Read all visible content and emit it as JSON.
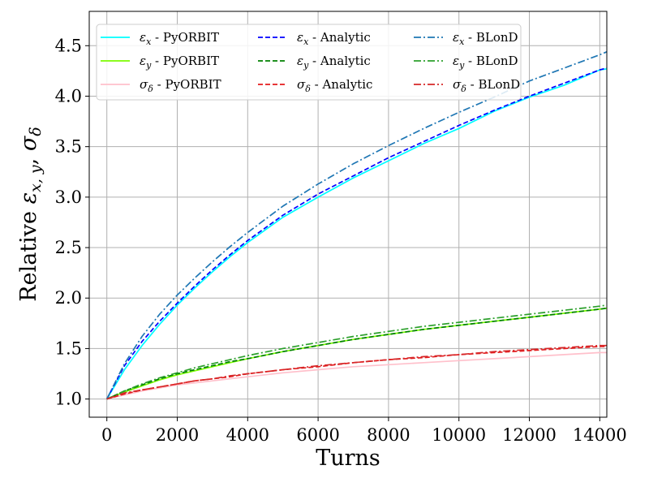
{
  "chart_data": {
    "type": "line",
    "title": "",
    "xlabel": "Turns",
    "ylabel_parts": [
      "Relative ",
      "ε",
      "x, y",
      ", ",
      "σ",
      "δ"
    ],
    "xlim": [
      -500,
      14200
    ],
    "ylim": [
      0.82,
      4.84
    ],
    "xticks": [
      0,
      2000,
      4000,
      6000,
      8000,
      10000,
      12000,
      14000
    ],
    "yticks": [
      1.0,
      1.5,
      2.0,
      2.5,
      3.0,
      3.5,
      4.0,
      4.5
    ],
    "xtick_labels": [
      "0",
      "2000",
      "4000",
      "6000",
      "8000",
      "10000",
      "12000",
      "14000"
    ],
    "ytick_labels": [
      "1.0",
      "1.5",
      "2.0",
      "2.5",
      "3.0",
      "3.5",
      "4.0",
      "4.5"
    ],
    "grid": true,
    "legend_placement": "top-left",
    "x": [
      0,
      500,
      1000,
      1500,
      2000,
      2500,
      3000,
      3500,
      4000,
      5000,
      6000,
      7000,
      8000,
      9000,
      10000,
      11000,
      12000,
      13000,
      14000,
      14200
    ],
    "series": [
      {
        "sym": "ε",
        "sub": "x",
        "method": "PyORBIT",
        "color": "#00ffff",
        "dash": "solid",
        "values": [
          1.0,
          1.29,
          1.53,
          1.74,
          1.93,
          2.1,
          2.26,
          2.41,
          2.55,
          2.8,
          3.0,
          3.19,
          3.36,
          3.53,
          3.68,
          3.85,
          3.99,
          4.11,
          4.26,
          4.27
        ]
      },
      {
        "sym": "ε",
        "sub": "y",
        "method": "PyORBIT",
        "color": "#7cfc00",
        "dash": "solid",
        "values": [
          1.0,
          1.07,
          1.13,
          1.19,
          1.24,
          1.28,
          1.32,
          1.36,
          1.4,
          1.47,
          1.53,
          1.59,
          1.64,
          1.69,
          1.73,
          1.77,
          1.81,
          1.85,
          1.89,
          1.9
        ]
      },
      {
        "sym": "σ",
        "sub": "δ",
        "method": "PyORBIT",
        "color": "#ffc0cb",
        "dash": "solid",
        "values": [
          1.0,
          1.04,
          1.08,
          1.11,
          1.14,
          1.16,
          1.18,
          1.2,
          1.22,
          1.26,
          1.29,
          1.32,
          1.34,
          1.36,
          1.38,
          1.4,
          1.42,
          1.44,
          1.46,
          1.46
        ]
      },
      {
        "sym": "ε",
        "sub": "x",
        "method": "Analytic",
        "color": "#0000ff",
        "dash": "dashed",
        "values": [
          1.0,
          1.33,
          1.57,
          1.77,
          1.95,
          2.12,
          2.28,
          2.43,
          2.57,
          2.82,
          3.03,
          3.21,
          3.39,
          3.55,
          3.71,
          3.86,
          4.0,
          4.13,
          4.26,
          4.28
        ]
      },
      {
        "sym": "ε",
        "sub": "y",
        "method": "Analytic",
        "color": "#008000",
        "dash": "dashed",
        "values": [
          1.0,
          1.08,
          1.14,
          1.2,
          1.25,
          1.29,
          1.33,
          1.37,
          1.4,
          1.47,
          1.53,
          1.59,
          1.64,
          1.69,
          1.73,
          1.77,
          1.81,
          1.85,
          1.89,
          1.9
        ]
      },
      {
        "sym": "σ",
        "sub": "δ",
        "method": "Analytic",
        "color": "#e41a1c",
        "dash": "dashed",
        "values": [
          1.0,
          1.05,
          1.09,
          1.12,
          1.15,
          1.18,
          1.2,
          1.22,
          1.25,
          1.29,
          1.32,
          1.36,
          1.39,
          1.41,
          1.44,
          1.46,
          1.48,
          1.5,
          1.52,
          1.52
        ]
      },
      {
        "sym": "ε",
        "sub": "x",
        "method": "BLonD",
        "color": "#1f77b4",
        "dash": "dashdot",
        "values": [
          1.0,
          1.35,
          1.62,
          1.84,
          2.03,
          2.2,
          2.36,
          2.51,
          2.65,
          2.91,
          3.13,
          3.33,
          3.51,
          3.68,
          3.84,
          3.99,
          4.15,
          4.28,
          4.41,
          4.44
        ]
      },
      {
        "sym": "ε",
        "sub": "y",
        "method": "BLonD",
        "color": "#2ca02c",
        "dash": "dashdot",
        "values": [
          1.0,
          1.08,
          1.15,
          1.21,
          1.26,
          1.31,
          1.35,
          1.39,
          1.43,
          1.5,
          1.56,
          1.62,
          1.67,
          1.72,
          1.76,
          1.8,
          1.84,
          1.88,
          1.92,
          1.93
        ]
      },
      {
        "sym": "σ",
        "sub": "δ",
        "method": "BLonD",
        "color": "#d62728",
        "dash": "dashdot",
        "values": [
          1.0,
          1.06,
          1.09,
          1.12,
          1.15,
          1.18,
          1.2,
          1.23,
          1.25,
          1.29,
          1.33,
          1.36,
          1.39,
          1.42,
          1.44,
          1.47,
          1.49,
          1.51,
          1.53,
          1.53
        ]
      }
    ]
  }
}
